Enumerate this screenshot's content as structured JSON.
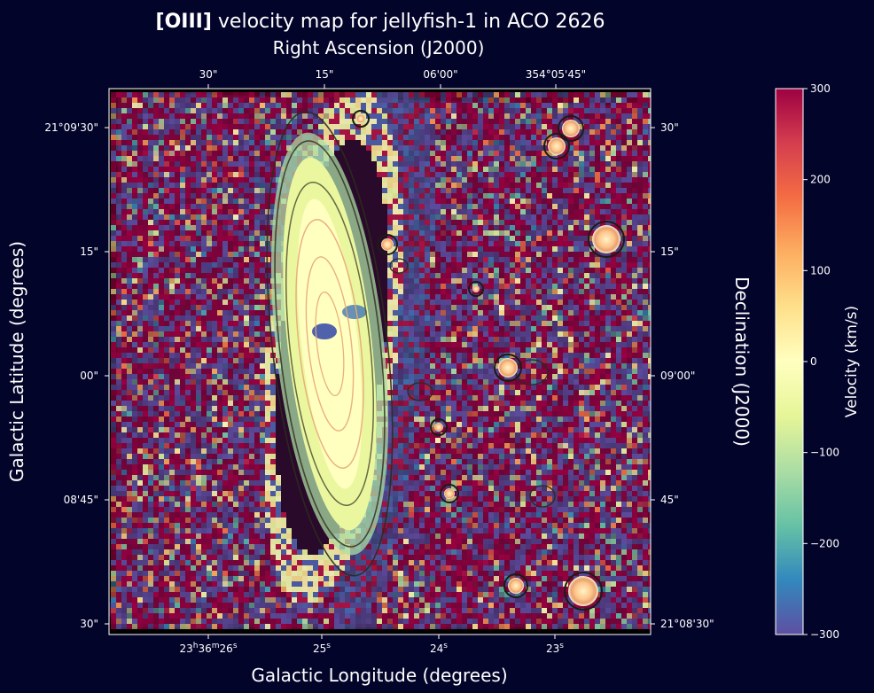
{
  "chart_data": {
    "type": "heatmap",
    "title_bold": "[OIII]",
    "title_rest": " velocity map for jellyfish-1 in ACO 2626",
    "top_axis_label": "Right Ascension (J2000)",
    "bottom_axis_label": "Galactic Longitude (degrees)",
    "left_axis_label": "Galactic Latitude (degrees)",
    "right_axis_label": "Declination (J2000)",
    "colorbar_label": "Velocity (km/s)",
    "colormap": "Spectral_r",
    "colorbar_range": [
      -300,
      300
    ],
    "colorbar_ticks": [
      {
        "value": 300,
        "label": "300"
      },
      {
        "value": 200,
        "label": "200"
      },
      {
        "value": 100,
        "label": "100"
      },
      {
        "value": 0,
        "label": "0"
      },
      {
        "value": -100,
        "label": "−100"
      },
      {
        "value": -200,
        "label": "−200"
      },
      {
        "value": -300,
        "label": "−300"
      }
    ],
    "top_ticks": [
      "30\"",
      "15\"",
      "06'00\"",
      "354°05'45\""
    ],
    "left_ticks": [
      "21°09'30\"",
      "15\"",
      "00\"",
      "08'45\"",
      "30\""
    ],
    "right_ticks": [
      "30\"",
      "15\"",
      "09'00\"",
      "45\"",
      "21°08'30\""
    ],
    "bottom_ticks": [
      {
        "label": "23h36m26s",
        "h": "23",
        "m": "36",
        "s": "26"
      },
      {
        "label": "25s",
        "s": "25"
      },
      {
        "label": "24s",
        "s": "24"
      },
      {
        "label": "23s",
        "s": "23"
      }
    ],
    "galaxy_velocity_km_s": 0,
    "core_velocity_km_s": -280,
    "background": "noise over the full range"
  },
  "colors": {
    "background": "#03042a",
    "map_blank": "#000000",
    "axis": "#ffffff",
    "contour": "#2b2b1e",
    "contour_inner": "#e8a878"
  }
}
